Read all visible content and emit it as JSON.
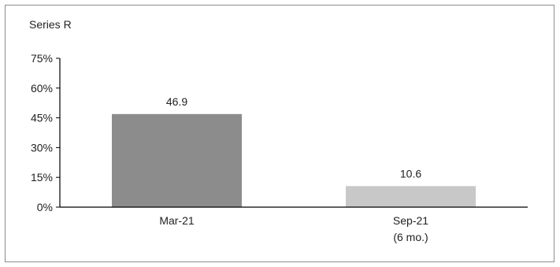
{
  "chart_data": {
    "type": "bar",
    "title": "Series R",
    "categories": [
      "Mar-21",
      "Sep-21"
    ],
    "category_sublabels": [
      "",
      "(6 mo.)"
    ],
    "values": [
      46.9,
      10.6
    ],
    "value_labels": [
      "46.9",
      "10.6"
    ],
    "bar_colors": [
      "#8c8c8c",
      "#c8c8c8"
    ],
    "ylim": [
      0,
      75
    ],
    "yticks": [
      0,
      15,
      30,
      45,
      60,
      75
    ],
    "ytick_labels": [
      "0%",
      "15%",
      "30%",
      "45%",
      "60%",
      "75%"
    ],
    "xlabel": "",
    "ylabel": "",
    "grid": false,
    "legend": "none"
  }
}
